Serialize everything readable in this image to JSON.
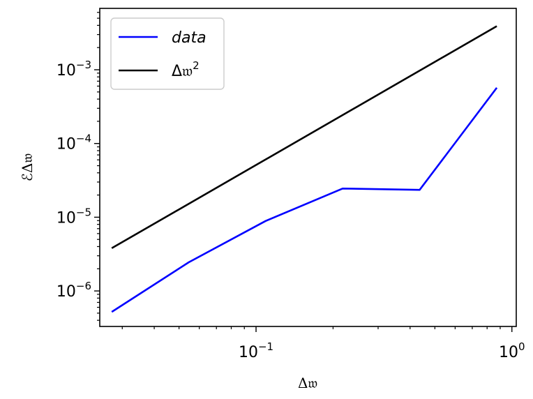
{
  "chart_data": {
    "type": "line",
    "xscale": "log",
    "yscale": "log",
    "xlabel": "Δ𝔴",
    "ylabel": "ℰΔ𝔴",
    "xlim": [
      0.0245,
      1.04
    ],
    "ylim": [
      3.3e-07,
      0.0068
    ],
    "x_ticks": [
      {
        "value": 0.1,
        "base": "10",
        "exp": "−1"
      },
      {
        "value": 1,
        "base": "10",
        "exp": "0"
      }
    ],
    "y_ticks": [
      {
        "value": 1e-06,
        "base": "10",
        "exp": "−6"
      },
      {
        "value": 1e-05,
        "base": "10",
        "exp": "−5"
      },
      {
        "value": 0.0001,
        "base": "10",
        "exp": "−4"
      },
      {
        "value": 0.001,
        "base": "10",
        "exp": "−3"
      }
    ],
    "legend_position": "top-left",
    "series": [
      {
        "name": "data",
        "color": "#0000ff",
        "x": [
          0.0273,
          0.0546,
          0.109,
          0.218,
          0.436,
          0.873
        ],
        "y": [
          5.2e-07,
          2.45e-06,
          8.9e-06,
          2.45e-05,
          2.35e-05,
          0.00057
        ]
      },
      {
        "name": "Δ𝔴",
        "name_sup": "2",
        "color": "#000000",
        "x": [
          0.0273,
          0.873
        ],
        "y": [
          3.8e-06,
          0.0039
        ]
      }
    ]
  }
}
